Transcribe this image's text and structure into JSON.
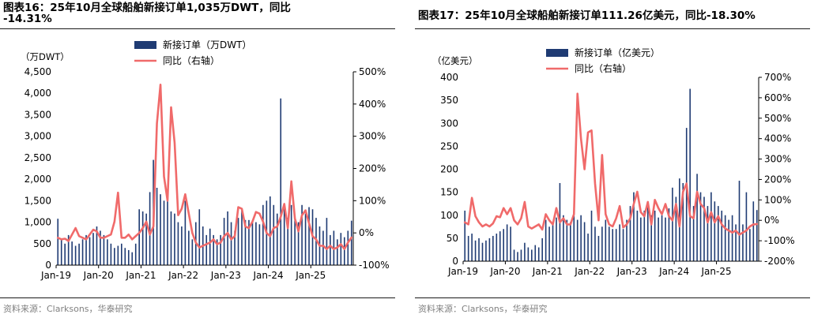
{
  "colors": {
    "bar": "#1f3b73",
    "line": "#f06a6a",
    "axis": "#000000",
    "source": "#808080"
  },
  "left": {
    "title_line1": "图表16：25年10月全球船舶新接订单1,035万DWT，同比",
    "title_line2": "-14.31%",
    "source": "资料来源：Clarksons，华泰研究"
  },
  "right": {
    "title": "图表17：25年10月全球船舶新接订单111.26亿美元，同比-18.30%",
    "source": "资料来源：Clarksons，华泰研究"
  },
  "chart_data": [
    {
      "type": "bar",
      "title": "25年10月全球船舶新接订单1,035万DWT，同比-14.31%",
      "ylabel": "（万DWT）",
      "legend": [
        "新接订单（万DWT）",
        "同比（右轴）"
      ],
      "x_ticks": [
        "Jan-19",
        "Jan-20",
        "Jan-21",
        "Jan-22",
        "Jan-23",
        "Jan-24",
        "Jan-25"
      ],
      "y_ticks": [
        "0",
        "500",
        "1,000",
        "1,500",
        "2,000",
        "2,500",
        "3,000",
        "3,500",
        "4,000",
        "4,500"
      ],
      "y2_ticks": [
        "-100%",
        "0%",
        "100%",
        "200%",
        "300%",
        "400%",
        "500%"
      ],
      "ylim": [
        0,
        4500
      ],
      "y2lim": [
        -100,
        500
      ],
      "series": [
        {
          "name": "新接订单（万DWT）",
          "axis": "left",
          "kind": "bar",
          "values": [
            1080,
            600,
            500,
            700,
            550,
            450,
            500,
            600,
            700,
            650,
            750,
            900,
            800,
            700,
            600,
            500,
            400,
            450,
            500,
            400,
            350,
            300,
            500,
            1300,
            1250,
            1200,
            1700,
            2450,
            1800,
            1650,
            1500,
            1550,
            1250,
            1200,
            1000,
            900,
            1500,
            800,
            600,
            1000,
            1300,
            900,
            700,
            850,
            700,
            600,
            700,
            1100,
            1250,
            1000,
            800,
            1100,
            1300,
            1050,
            1050,
            1000,
            1000,
            950,
            1400,
            1500,
            1600,
            1400,
            1200,
            3880,
            1300,
            1100,
            1400,
            1150,
            1000,
            1400,
            1200,
            1350,
            1300,
            1100,
            900,
            800,
            1100,
            700,
            800,
            600,
            750,
            650,
            800,
            1035
          ]
        },
        {
          "name": "同比（右轴）",
          "axis": "right",
          "kind": "line",
          "values": [
            -15,
            -20,
            -18,
            -25,
            -5,
            15,
            -10,
            -15,
            -20,
            -5,
            10,
            5,
            -15,
            -15,
            -10,
            -5,
            35,
            125,
            -15,
            -15,
            -5,
            -20,
            -10,
            0,
            15,
            35,
            -5,
            20,
            340,
            460,
            175,
            100,
            390,
            280,
            55,
            75,
            120,
            60,
            0,
            -30,
            -45,
            -40,
            -35,
            -30,
            -20,
            -35,
            -30,
            -10,
            0,
            -20,
            -10,
            80,
            75,
            20,
            15,
            35,
            65,
            60,
            35,
            0,
            -10,
            15,
            20,
            50,
            90,
            15,
            160,
            45,
            5,
            55,
            70,
            30,
            -10,
            -20,
            -40,
            -40,
            -50,
            -40,
            -50,
            -45,
            -35,
            -50,
            -30,
            -14.31
          ]
        }
      ]
    },
    {
      "type": "bar",
      "title": "25年10月全球船舶新接订单111.26亿美元，同比-18.30%",
      "ylabel": "（亿美元）",
      "legend": [
        "新接订单（亿美元）",
        "同比（右轴）"
      ],
      "x_ticks": [
        "Jan-19",
        "Jan-20",
        "Jan-21",
        "Jan-22",
        "Jan-23",
        "Jan-24",
        "Jan-25"
      ],
      "y_ticks": [
        "0",
        "50",
        "100",
        "150",
        "200",
        "250",
        "300",
        "350",
        "400"
      ],
      "y2_ticks": [
        "-200%",
        "-100%",
        "0%",
        "100%",
        "200%",
        "300%",
        "400%",
        "500%",
        "600%",
        "700%"
      ],
      "ylim": [
        0,
        400
      ],
      "y2lim": [
        -200,
        700
      ],
      "series": [
        {
          "name": "新接订单（亿美元）",
          "axis": "left",
          "kind": "bar",
          "values": [
            110,
            55,
            60,
            45,
            50,
            40,
            45,
            50,
            55,
            60,
            65,
            70,
            80,
            75,
            25,
            20,
            25,
            40,
            30,
            25,
            35,
            30,
            50,
            90,
            75,
            80,
            95,
            170,
            100,
            90,
            85,
            105,
            90,
            100,
            85,
            60,
            110,
            75,
            55,
            75,
            90,
            75,
            70,
            70,
            80,
            70,
            90,
            120,
            150,
            110,
            95,
            110,
            120,
            100,
            110,
            95,
            100,
            95,
            115,
            160,
            140,
            180,
            170,
            290,
            375,
            120,
            190,
            150,
            140,
            120,
            150,
            130,
            120,
            110,
            100,
            90,
            100,
            80,
            175,
            80,
            150,
            70,
            130,
            111.26
          ]
        },
        {
          "name": "同比（右轴）",
          "axis": "right",
          "kind": "line",
          "values": [
            -10,
            -20,
            110,
            20,
            -10,
            -30,
            -20,
            -30,
            -15,
            20,
            15,
            60,
            30,
            60,
            0,
            -20,
            10,
            90,
            -30,
            -40,
            -30,
            -20,
            -45,
            30,
            0,
            -20,
            60,
            -10,
            10,
            -20,
            -20,
            30,
            620,
            400,
            250,
            430,
            440,
            180,
            0,
            320,
            30,
            -20,
            -30,
            10,
            70,
            -35,
            -20,
            10,
            80,
            140,
            40,
            20,
            90,
            -20,
            100,
            60,
            30,
            80,
            20,
            0,
            80,
            -30,
            140,
            180,
            20,
            10,
            140,
            80,
            60,
            -10,
            40,
            -10,
            20,
            -20,
            -40,
            -50,
            -60,
            -50,
            -70,
            -60,
            -50,
            -30,
            -20,
            -18.3
          ]
        }
      ]
    }
  ]
}
